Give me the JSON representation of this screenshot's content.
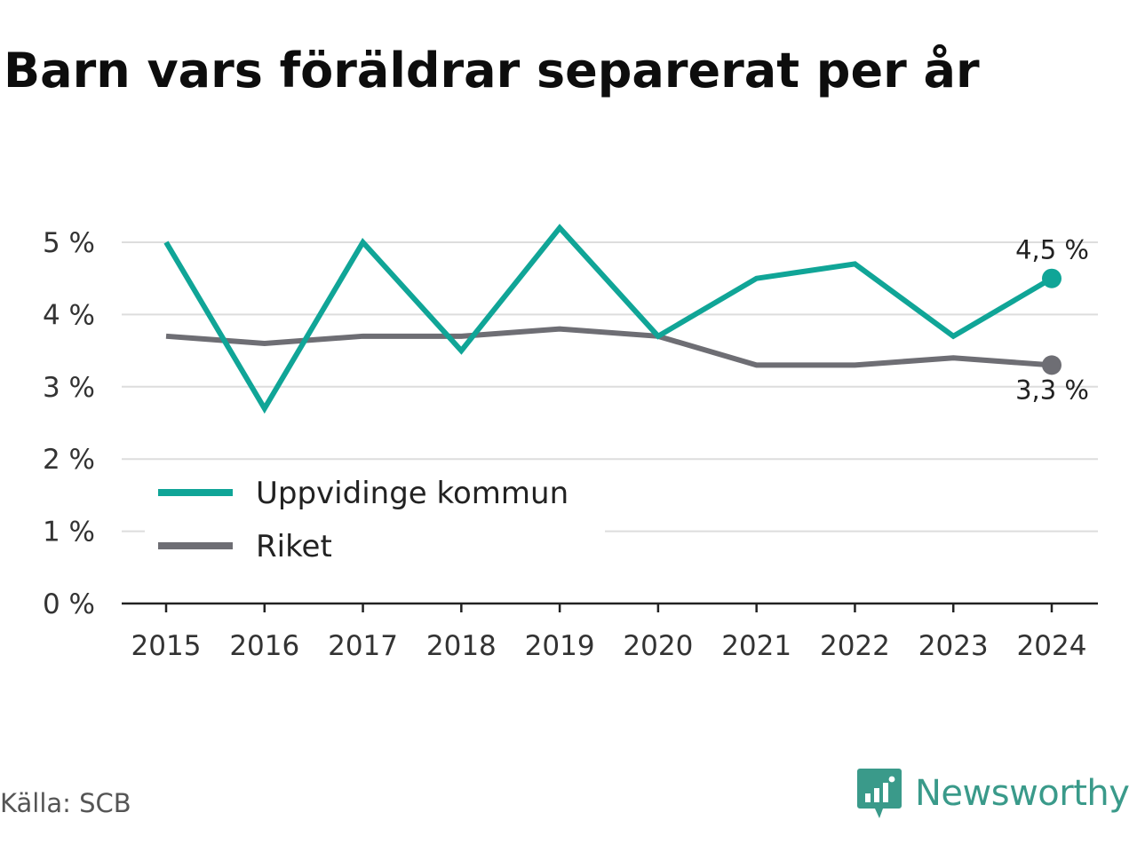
{
  "title": "Barn vars föräldrar separerat per år",
  "source": "Källa: SCB",
  "brand": "Newsworthy",
  "colors": {
    "uppvidinge": "#10a597",
    "riket": "#6e6e74",
    "grid": "#dddddd",
    "axis": "#222222",
    "brand": "#3a9a8a"
  },
  "chart_data": {
    "type": "line",
    "title": "Barn vars föräldrar separerat per år",
    "x": [
      2015,
      2016,
      2017,
      2018,
      2019,
      2020,
      2021,
      2022,
      2023,
      2024
    ],
    "x_tick_labels": [
      "2015",
      "2016",
      "2017",
      "2018",
      "2019",
      "2020",
      "2021",
      "2022",
      "2023",
      "2024"
    ],
    "y_ticks": [
      0,
      1,
      2,
      3,
      4,
      5
    ],
    "y_tick_labels": [
      "0 %",
      "1 %",
      "2 %",
      "3 %",
      "4 %",
      "5 %"
    ],
    "ylim": [
      0,
      5.3
    ],
    "grid": true,
    "legend_position": "bottom-left",
    "series": [
      {
        "name": "Uppvidinge kommun",
        "color": "#10a597",
        "values": [
          5.0,
          2.7,
          5.0,
          3.5,
          5.2,
          3.7,
          4.5,
          4.7,
          3.7,
          4.5
        ],
        "end_label": "4,5 %"
      },
      {
        "name": "Riket",
        "color": "#6e6e74",
        "values": [
          3.7,
          3.6,
          3.7,
          3.7,
          3.8,
          3.7,
          3.3,
          3.3,
          3.4,
          3.3
        ],
        "end_label": "3,3 %"
      }
    ]
  }
}
